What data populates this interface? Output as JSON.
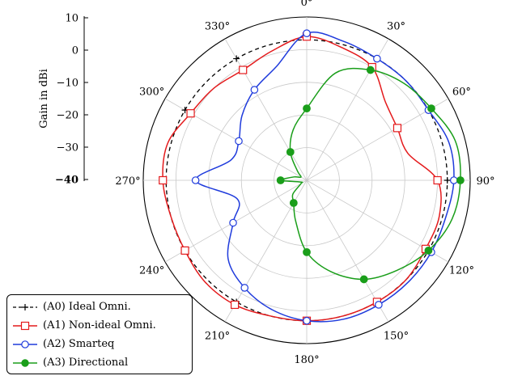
{
  "chart_data": {
    "type": "polar-line",
    "radial_axis": {
      "label": "Gain in dBi",
      "min": -40,
      "max": 10,
      "ticks": [
        10,
        0,
        -10,
        -20,
        -30,
        -40
      ],
      "tick_labels": [
        "10",
        "0",
        "−10",
        "−20",
        "−30",
        "−40"
      ]
    },
    "angular_axis": {
      "unit": "degrees",
      "direction": "clockwise",
      "zero_location": "top",
      "ticks": [
        0,
        30,
        60,
        90,
        120,
        150,
        180,
        210,
        240,
        270,
        300,
        330
      ],
      "tick_labels": [
        "0°",
        "30°",
        "60°",
        "90°",
        "120°",
        "150°",
        "180°",
        "210°",
        "240°",
        "270°",
        "300°",
        "330°"
      ]
    },
    "grid": true,
    "legend_position": "bottom-left",
    "series": [
      {
        "name": "(A0) Ideal Omni.",
        "key": "A0",
        "color": "#000000",
        "dashed": true,
        "marker": "plus",
        "theta": [
          0,
          15,
          30,
          45,
          60,
          75,
          90,
          105,
          120,
          135,
          150,
          165,
          180,
          195,
          210,
          225,
          240,
          255,
          270,
          285,
          300,
          315,
          330,
          345
        ],
        "r": [
          3,
          3,
          3,
          3,
          3,
          3,
          3,
          3,
          3,
          3,
          3,
          3,
          3,
          3,
          3,
          3,
          3,
          3,
          3,
          3,
          3,
          3,
          3,
          3
        ],
        "marker_theta": [
          30,
          60,
          90,
          120,
          150,
          210,
          240,
          300,
          330
        ]
      },
      {
        "name": "(A1) Non-ideal Omni.",
        "key": "A1",
        "color": "#e41a1c",
        "dashed": false,
        "marker": "square",
        "theta": [
          0,
          15,
          30,
          45,
          60,
          75,
          90,
          105,
          120,
          135,
          150,
          165,
          180,
          195,
          210,
          225,
          240,
          255,
          270,
          285,
          300,
          315,
          330,
          345
        ],
        "r": [
          4,
          2,
          0,
          -6,
          -8,
          -8,
          0,
          2,
          2,
          3,
          3,
          3,
          3,
          3,
          4,
          4,
          3,
          3,
          4,
          4,
          1,
          0,
          -1,
          1
        ],
        "marker_theta": [
          0,
          30,
          60,
          90,
          120,
          150,
          180,
          210,
          240,
          270,
          300,
          330
        ]
      },
      {
        "name": "(A2) Smarteq",
        "key": "A2",
        "color": "#1f3bdc",
        "dashed": false,
        "marker": "circle",
        "theta": [
          0,
          15,
          30,
          45,
          60,
          75,
          90,
          105,
          120,
          135,
          150,
          165,
          180,
          195,
          210,
          225,
          240,
          255,
          270,
          285,
          300,
          315,
          330,
          345
        ],
        "r": [
          5,
          4,
          3,
          3,
          3,
          5,
          5,
          4,
          4,
          4,
          4,
          4,
          3,
          1,
          -2,
          -6,
          -14,
          -18,
          -6,
          -16,
          -16,
          -12,
          -8,
          -4
        ],
        "marker_theta": [
          0,
          30,
          60,
          90,
          120,
          150,
          180,
          210,
          240,
          270,
          300,
          330
        ]
      },
      {
        "name": "(A3) Directional",
        "key": "A3",
        "color": "#1a9e1a",
        "dashed": false,
        "marker": "circle-filled",
        "theta": [
          0,
          15,
          30,
          45,
          60,
          75,
          90,
          105,
          120,
          135,
          150,
          165,
          180,
          195,
          210,
          225,
          240,
          255,
          270,
          285,
          300,
          315,
          330,
          345
        ],
        "r": [
          -18,
          -6,
          -1,
          2,
          4,
          7,
          7,
          6,
          3,
          -1,
          -5,
          -11,
          -18,
          -27,
          -32,
          -34,
          -38,
          -38,
          -32,
          -36,
          -38,
          -36,
          -30,
          -24
        ],
        "marker_theta": [
          0,
          30,
          60,
          90,
          120,
          150,
          180,
          210,
          270,
          330
        ]
      }
    ]
  }
}
